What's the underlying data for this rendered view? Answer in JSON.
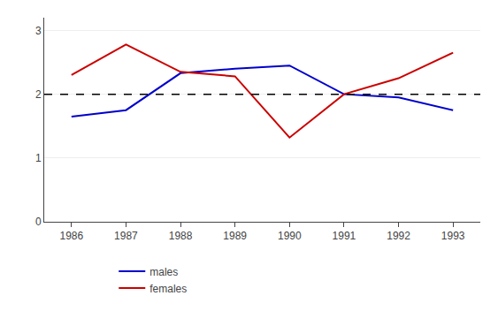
{
  "chart_data": {
    "type": "line",
    "x": [
      1986,
      1987,
      1988,
      1989,
      1990,
      1991,
      1992,
      1993
    ],
    "series": [
      {
        "name": "males",
        "color": "#0000cc",
        "line_style": "solid",
        "values": [
          1.65,
          1.75,
          2.33,
          2.4,
          2.45,
          2.0,
          1.95,
          1.75
        ]
      },
      {
        "name": "females",
        "color": "#cc0000",
        "line_style": "solid",
        "values": [
          2.3,
          2.78,
          2.35,
          2.28,
          1.32,
          2.0,
          2.25,
          2.65
        ]
      }
    ],
    "xlim": [
      1985.5,
      1993.5
    ],
    "xticks": [
      1986,
      1987,
      1988,
      1989,
      1990,
      1991,
      1992,
      1993
    ],
    "ylim": [
      0,
      3.2
    ],
    "yticks": [
      0,
      1,
      2,
      3
    ],
    "grid": "y",
    "legend": "bottom",
    "hlines": [
      {
        "value": 2,
        "line_style": "dashed",
        "color": "#000000"
      }
    ]
  }
}
